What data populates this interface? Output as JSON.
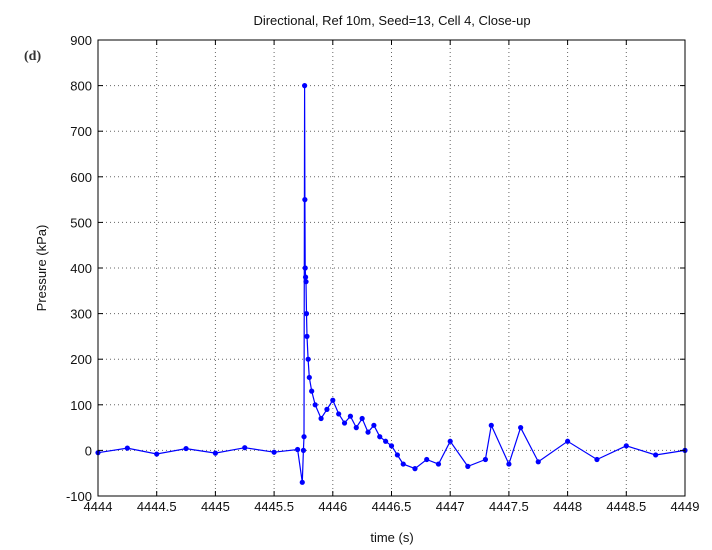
{
  "panel_label": "(d)",
  "chart_data": {
    "type": "line",
    "title": "Directional, Ref 10m, Seed=13, Cell 4, Close-up",
    "xlabel": "time (s)",
    "ylabel": "Pressure (kPa)",
    "xlim": [
      4444,
      4449
    ],
    "ylim": [
      -100,
      900
    ],
    "xticks": [
      "4444",
      "4444.5",
      "4445",
      "4445.5",
      "4446",
      "4446.5",
      "4447",
      "4447.5",
      "4448",
      "4448.5",
      "4449"
    ],
    "yticks": [
      "-100",
      "0",
      "100",
      "200",
      "300",
      "400",
      "500",
      "600",
      "700",
      "800",
      "900"
    ],
    "grid": true,
    "marker": "dot",
    "series_color": "#0000ff",
    "series": [
      {
        "x": [
          4444.0,
          4444.25,
          4444.5,
          4444.75,
          4445.0,
          4445.25,
          4445.5,
          4445.7,
          4445.74,
          4445.75,
          4445.755,
          4445.76,
          4445.762,
          4445.765,
          4445.768,
          4445.772,
          4445.776,
          4445.78,
          4445.79,
          4445.8,
          4445.82,
          4445.85,
          4445.9,
          4445.95,
          4446.0,
          4446.05,
          4446.1,
          4446.15,
          4446.2,
          4446.25,
          4446.3,
          4446.35,
          4446.4,
          4446.45,
          4446.5,
          4446.55,
          4446.6,
          4446.7,
          4446.8,
          4446.9,
          4447.0,
          4447.15,
          4447.3,
          4447.35,
          4447.5,
          4447.6,
          4447.75,
          4448.0,
          4448.25,
          4448.5,
          4448.75,
          4449.0
        ],
        "y": [
          -5,
          5,
          -8,
          4,
          -6,
          6,
          -4,
          2,
          -70,
          0,
          30,
          800,
          550,
          400,
          380,
          370,
          300,
          250,
          200,
          160,
          130,
          100,
          70,
          90,
          110,
          80,
          60,
          75,
          50,
          70,
          40,
          55,
          30,
          20,
          10,
          -10,
          -30,
          -40,
          -20,
          -30,
          20,
          -35,
          -20,
          55,
          -30,
          50,
          -25,
          20,
          -20,
          10,
          -10,
          0
        ]
      }
    ]
  }
}
